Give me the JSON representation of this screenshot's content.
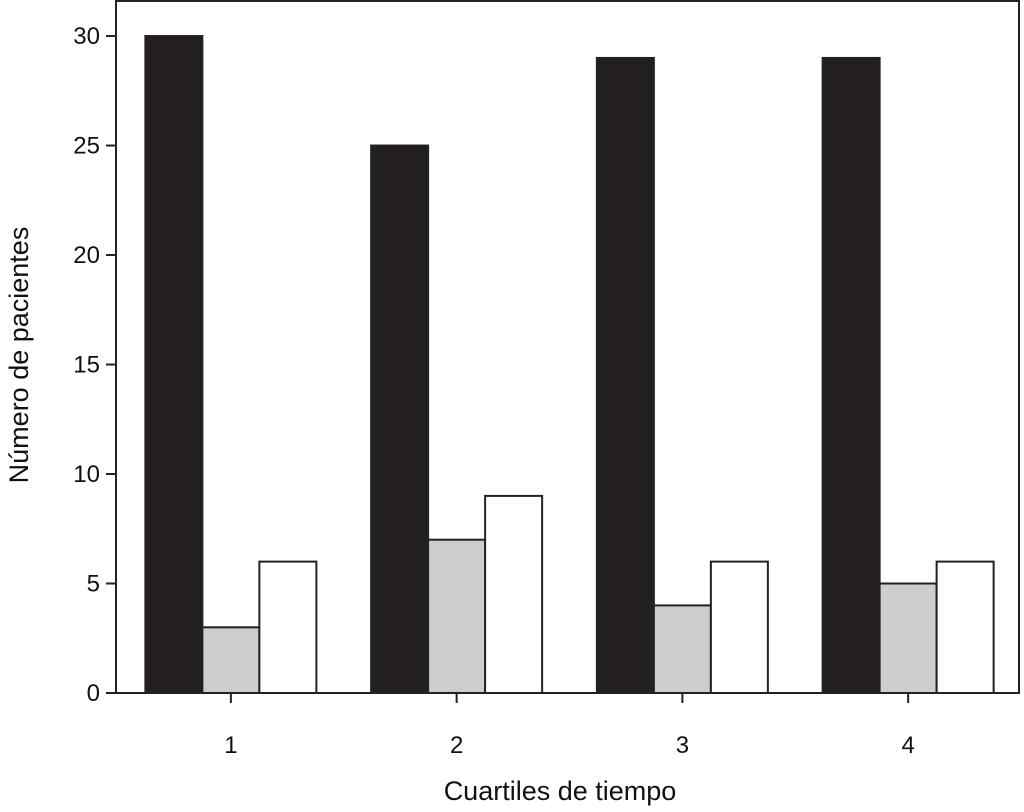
{
  "chart_data": {
    "type": "bar",
    "title": "",
    "xlabel": "Cuartiles de tiempo",
    "ylabel": "Número de pacientes",
    "categories": [
      "1",
      "2",
      "3",
      "4"
    ],
    "series": [
      {
        "name": "series-1",
        "color": "#231f20",
        "values": [
          30,
          25,
          29,
          29
        ]
      },
      {
        "name": "series-2",
        "color": "#cccdcc",
        "values": [
          3,
          7,
          4,
          5
        ]
      },
      {
        "name": "series-3",
        "color": "#ffffff",
        "values": [
          6,
          9,
          6,
          6
        ]
      }
    ],
    "ylim": [
      0,
      31.6
    ],
    "yticks": [
      0,
      5,
      10,
      15,
      20,
      25,
      30
    ],
    "grid": false,
    "legend": "none"
  }
}
